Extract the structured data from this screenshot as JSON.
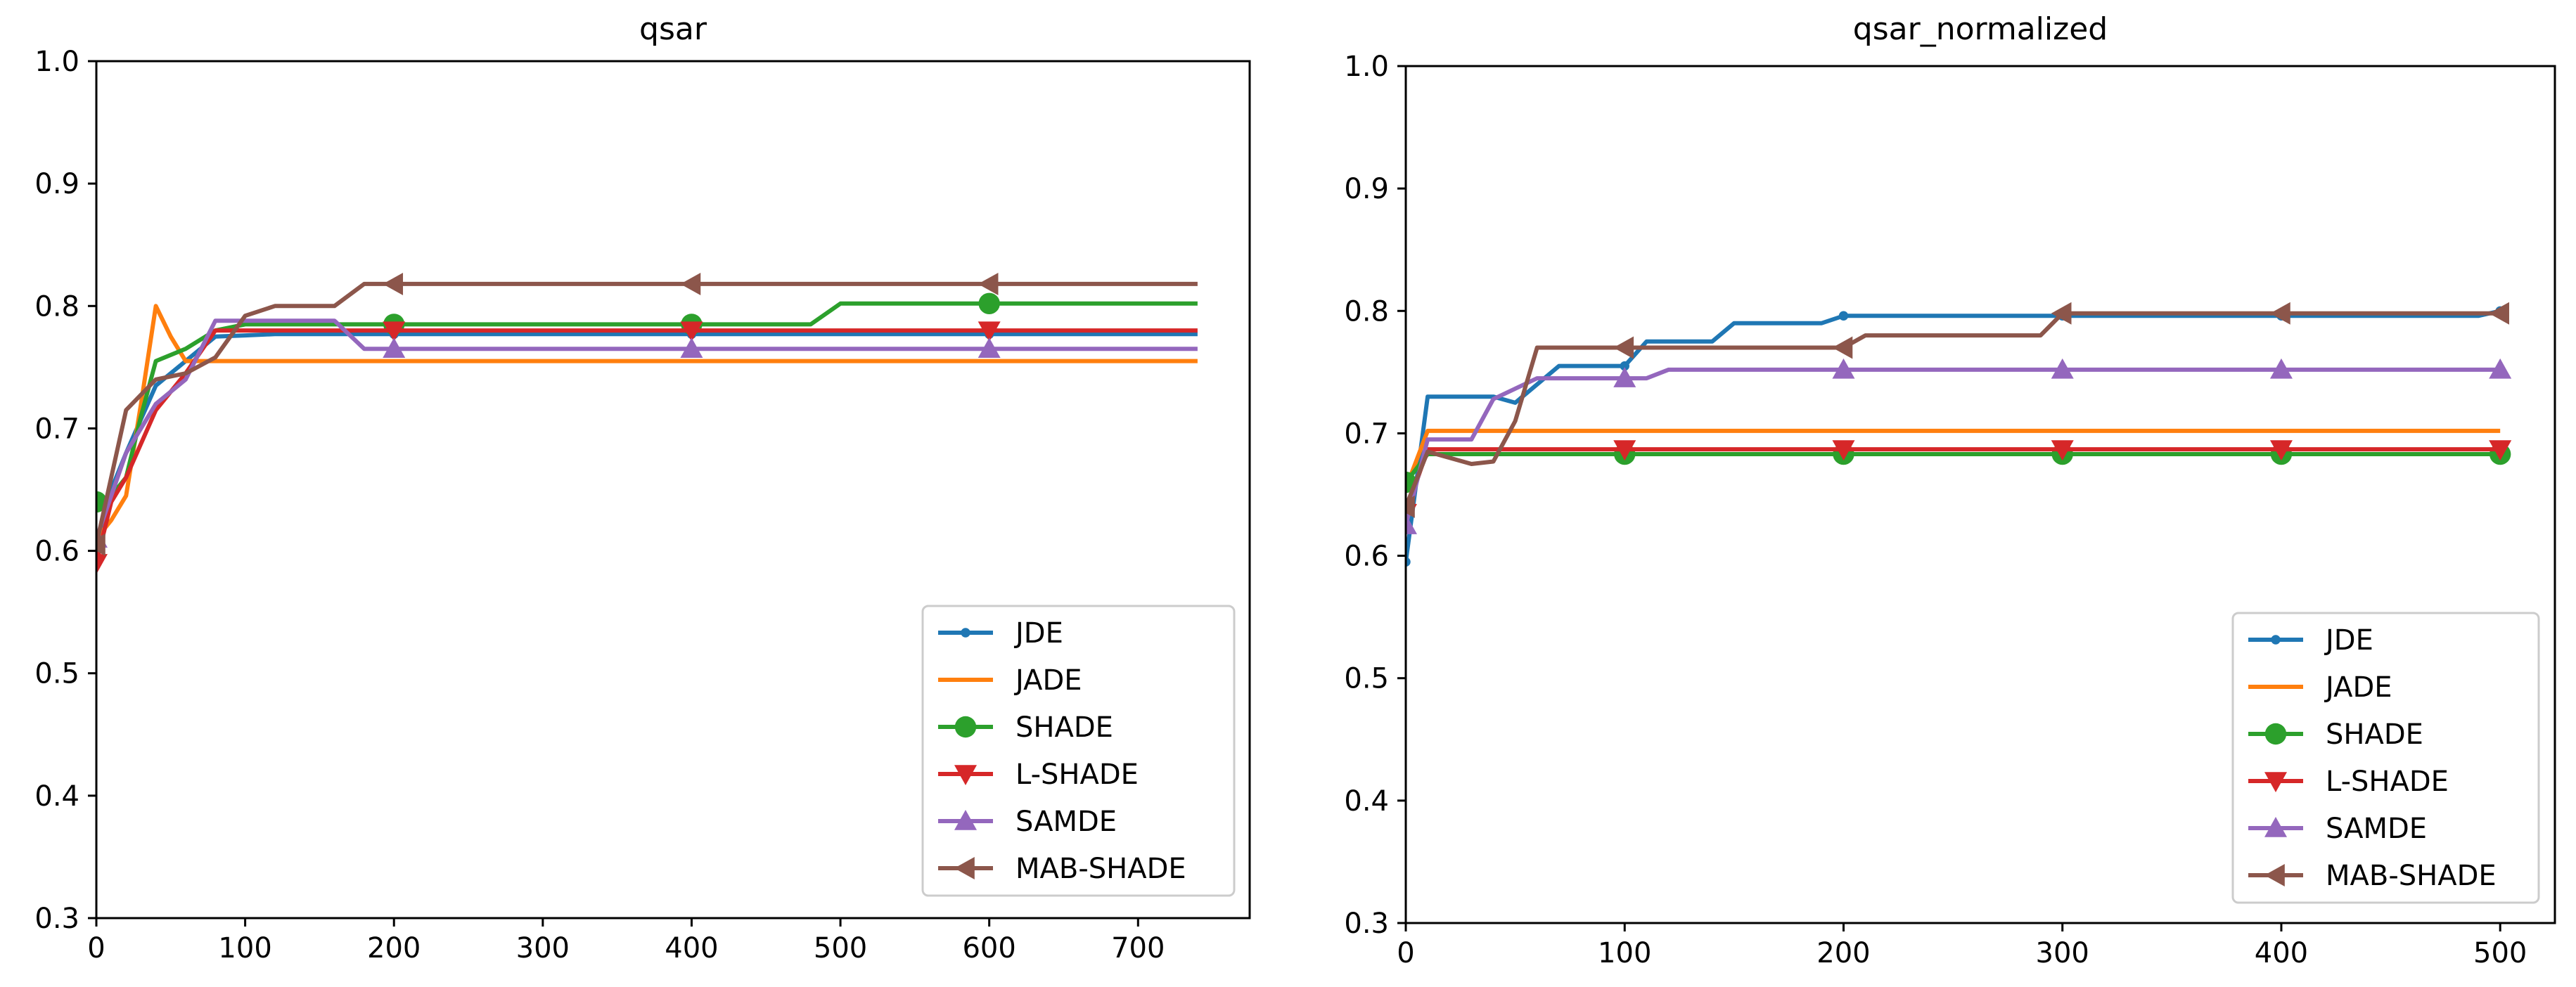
{
  "chart_data": [
    {
      "type": "line",
      "title": "qsar",
      "xlabel": "",
      "ylabel": "",
      "xlim": [
        0,
        775
      ],
      "ylim": [
        0.3,
        1.0
      ],
      "xticks": [
        0,
        100,
        200,
        300,
        400,
        500,
        600,
        700
      ],
      "yticks": [
        0.3,
        0.4,
        0.5,
        0.6,
        0.7,
        0.8,
        0.9,
        1.0
      ],
      "yticklabels": [
        "0.3",
        "0.4",
        "0.5",
        "0.6",
        "0.7",
        "0.8",
        "0.9",
        "1.0"
      ],
      "marker_every": [
        0,
        200,
        400,
        600
      ],
      "legend": "lower-right",
      "grid": false,
      "series": [
        {
          "name": "JDE",
          "color": "#1f77b4",
          "marker": "point",
          "x": [
            0,
            10,
            20,
            40,
            60,
            80,
            100,
            120,
            200,
            400,
            600,
            740
          ],
          "y": [
            0.595,
            0.65,
            0.68,
            0.735,
            0.755,
            0.775,
            0.776,
            0.777,
            0.777,
            0.777,
            0.777,
            0.777
          ]
        },
        {
          "name": "JADE",
          "color": "#ff7f0e",
          "marker": "none",
          "x": [
            0,
            10,
            20,
            30,
            40,
            50,
            60,
            70,
            80,
            200,
            400,
            600,
            740
          ],
          "y": [
            0.61,
            0.625,
            0.645,
            0.72,
            0.8,
            0.775,
            0.755,
            0.755,
            0.755,
            0.755,
            0.755,
            0.755,
            0.755
          ]
        },
        {
          "name": "SHADE",
          "color": "#2ca02c",
          "marker": "circle",
          "x": [
            0,
            10,
            20,
            30,
            40,
            60,
            80,
            100,
            200,
            400,
            480,
            500,
            600,
            740
          ],
          "y": [
            0.64,
            0.645,
            0.66,
            0.71,
            0.755,
            0.765,
            0.78,
            0.785,
            0.785,
            0.785,
            0.785,
            0.802,
            0.802,
            0.802
          ]
        },
        {
          "name": "L-SHADE",
          "color": "#d62728",
          "marker": "triangle-down",
          "x": [
            0,
            10,
            20,
            40,
            60,
            80,
            200,
            400,
            600,
            740
          ],
          "y": [
            0.59,
            0.64,
            0.66,
            0.715,
            0.745,
            0.78,
            0.78,
            0.78,
            0.78,
            0.78
          ]
        },
        {
          "name": "SAMDE",
          "color": "#9467bd",
          "marker": "triangle-up",
          "x": [
            0,
            10,
            20,
            40,
            60,
            80,
            100,
            120,
            160,
            180,
            200,
            400,
            600,
            740
          ],
          "y": [
            0.61,
            0.645,
            0.68,
            0.72,
            0.74,
            0.788,
            0.788,
            0.788,
            0.788,
            0.765,
            0.765,
            0.765,
            0.765,
            0.765
          ]
        },
        {
          "name": "MAB-SHADE",
          "color": "#8c564b",
          "marker": "triangle-left",
          "x": [
            0,
            20,
            40,
            60,
            80,
            100,
            120,
            160,
            180,
            200,
            400,
            600,
            740
          ],
          "y": [
            0.605,
            0.715,
            0.74,
            0.745,
            0.758,
            0.792,
            0.8,
            0.8,
            0.818,
            0.818,
            0.818,
            0.818,
            0.818
          ]
        }
      ]
    },
    {
      "type": "line",
      "title": "qsar_normalized",
      "xlabel": "",
      "ylabel": "",
      "xlim": [
        0,
        525
      ],
      "ylim": [
        0.3,
        1.0
      ],
      "xticks": [
        0,
        100,
        200,
        300,
        400,
        500
      ],
      "yticks": [
        0.3,
        0.4,
        0.5,
        0.6,
        0.7,
        0.8,
        0.9,
        1.0
      ],
      "yticklabels": [
        "0.3",
        "0.4",
        "0.5",
        "0.6",
        "0.7",
        "0.8",
        "0.9",
        "1.0"
      ],
      "marker_every": [
        0,
        100,
        200,
        300,
        400,
        500
      ],
      "legend": "lower-right",
      "grid": false,
      "series": [
        {
          "name": "JDE",
          "color": "#1f77b4",
          "marker": "point",
          "x": [
            0,
            10,
            40,
            50,
            60,
            70,
            100,
            110,
            140,
            150,
            190,
            200,
            300,
            400,
            490,
            500
          ],
          "y": [
            0.595,
            0.73,
            0.73,
            0.725,
            0.74,
            0.755,
            0.755,
            0.775,
            0.775,
            0.79,
            0.79,
            0.796,
            0.796,
            0.796,
            0.796,
            0.8
          ]
        },
        {
          "name": "JADE",
          "color": "#ff7f0e",
          "marker": "none",
          "x": [
            0,
            10,
            100,
            200,
            300,
            400,
            500
          ],
          "y": [
            0.655,
            0.702,
            0.702,
            0.702,
            0.702,
            0.702,
            0.702
          ]
        },
        {
          "name": "SHADE",
          "color": "#2ca02c",
          "marker": "circle",
          "x": [
            0,
            10,
            100,
            200,
            300,
            400,
            500
          ],
          "y": [
            0.66,
            0.683,
            0.683,
            0.683,
            0.683,
            0.683,
            0.683
          ]
        },
        {
          "name": "L-SHADE",
          "color": "#d62728",
          "marker": "triangle-down",
          "x": [
            0,
            10,
            100,
            200,
            300,
            400,
            500
          ],
          "y": [
            0.635,
            0.687,
            0.687,
            0.687,
            0.687,
            0.687,
            0.687
          ]
        },
        {
          "name": "SAMDE",
          "color": "#9467bd",
          "marker": "triangle-up",
          "x": [
            0,
            10,
            30,
            40,
            60,
            100,
            110,
            120,
            200,
            300,
            400,
            500
          ],
          "y": [
            0.625,
            0.695,
            0.695,
            0.728,
            0.745,
            0.745,
            0.745,
            0.752,
            0.752,
            0.752,
            0.752,
            0.752
          ]
        },
        {
          "name": "MAB-SHADE",
          "color": "#8c564b",
          "marker": "triangle-left",
          "x": [
            0,
            10,
            30,
            40,
            50,
            60,
            100,
            200,
            210,
            290,
            300,
            400,
            500
          ],
          "y": [
            0.64,
            0.685,
            0.675,
            0.677,
            0.71,
            0.77,
            0.77,
            0.77,
            0.78,
            0.78,
            0.798,
            0.798,
            0.798
          ]
        }
      ]
    }
  ]
}
